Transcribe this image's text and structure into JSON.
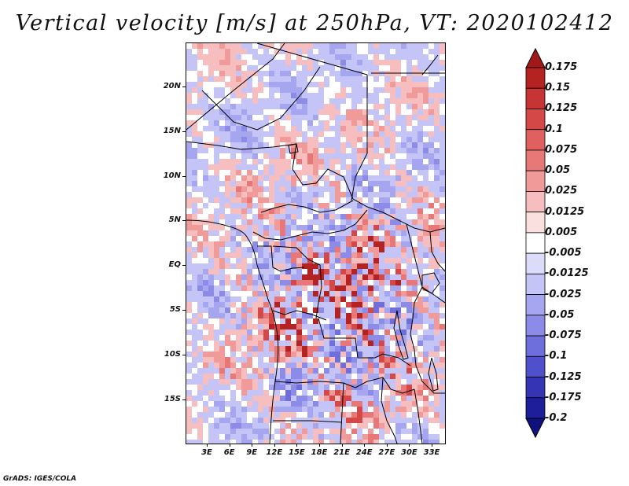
{
  "title": "Vertical velocity [m/s] at 250hPa, VT: 2020102412",
  "credit": "GrADS: IGES/COLA",
  "map": {
    "lat_labels": [
      "20N",
      "15N",
      "10N",
      "5N",
      "EQ",
      "5S",
      "10S",
      "15S"
    ],
    "lon_labels": [
      "3E",
      "6E",
      "9E",
      "12E",
      "15E",
      "18E",
      "21E",
      "24E",
      "27E",
      "30E",
      "33E"
    ]
  },
  "colorbar": {
    "levels": [
      "0.175",
      "0.15",
      "0.125",
      "0.1",
      "0.075",
      "0.05",
      "0.025",
      "0.0125",
      "0.005",
      "-0.005",
      "-0.0125",
      "-0.025",
      "-0.05",
      "-0.075",
      "-0.1",
      "-0.125",
      "-0.175",
      "-0.2"
    ],
    "colors": [
      "#a01818",
      "#b42222",
      "#c63434",
      "#d44848",
      "#e06060",
      "#e87878",
      "#f09a9a",
      "#f6bebe",
      "#fbe0e0",
      "#ffffff",
      "#dcdcfa",
      "#c4c4f6",
      "#a6a6f0",
      "#8c8ce8",
      "#6e6edc",
      "#5050cc",
      "#3434b4",
      "#1e1e9a",
      "#10107e"
    ]
  }
}
